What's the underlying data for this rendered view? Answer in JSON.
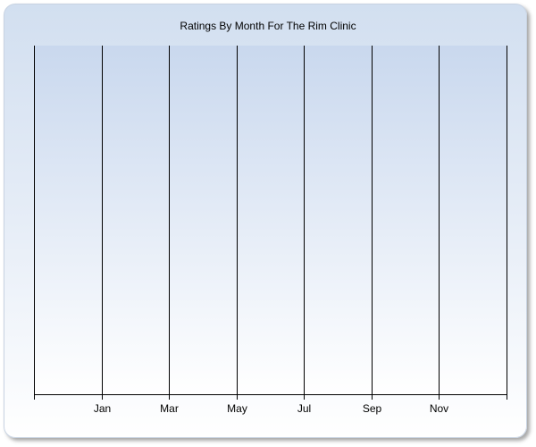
{
  "chart_data": {
    "type": "bar",
    "title": "Ratings By Month For The Rim Clinic",
    "xlabel": "",
    "ylabel": "",
    "x_tick_labels": [
      "",
      "Jan",
      "Mar",
      "May",
      "Jul",
      "Sep",
      "Nov",
      ""
    ],
    "series": [],
    "grid": {
      "vertical": true,
      "horizontal": false
    },
    "legend": "none",
    "colors": {
      "background_top": "#d2dff0",
      "plot_top": "#c9d8ee",
      "gridline": "#000000"
    }
  }
}
